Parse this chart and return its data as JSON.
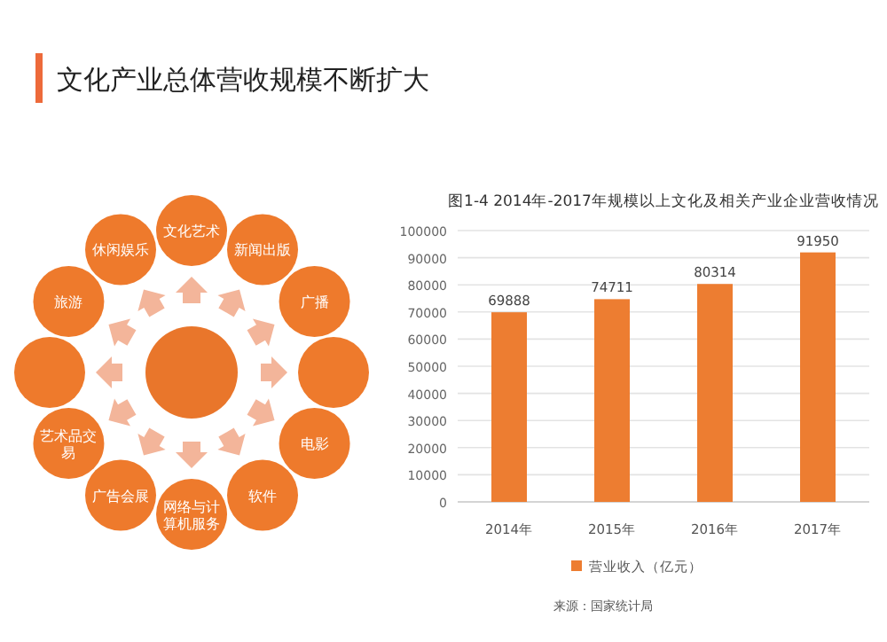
{
  "chart_data": [
    {
      "type": "other",
      "title": "文化产业总体营收规模不断扩大",
      "annotations": [
        "文化艺术",
        "新闻出版",
        "广播",
        "电影",
        "软件",
        "网络与计算机服务",
        "广告会展",
        "艺术品交易",
        "旅游",
        "休闲娱乐"
      ]
    },
    {
      "type": "bar",
      "title": "图1-4 2014年-2017年规模以上文化及相关产业企业营收情况",
      "categories": [
        "2014年",
        "2015年",
        "2016年",
        "2017年"
      ],
      "series": [
        {
          "name": "营业收入（亿元）",
          "color": "#ed7d31",
          "values": [
            69888,
            74711,
            80314,
            91950
          ]
        }
      ],
      "ylim": [
        0,
        100000
      ],
      "yticks": [
        0,
        10000,
        20000,
        30000,
        40000,
        50000,
        60000,
        70000,
        80000,
        90000,
        100000
      ],
      "grid": "y",
      "legend": "bottom",
      "data_labels": true,
      "annotations": [
        "来源：国家统计局"
      ]
    }
  ]
}
